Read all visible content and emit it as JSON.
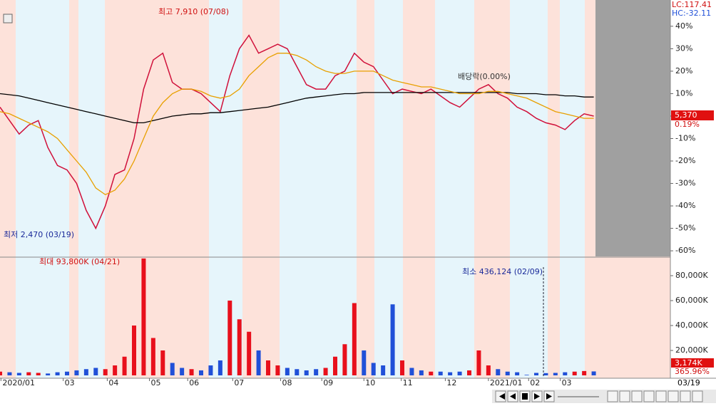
{
  "chart_data": [
    {
      "type": "line",
      "annotations": {
        "high": "최고 7,910 (07/08)",
        "low": "최저 2,470 (03/19)",
        "dividend": "배당락(0.00%)"
      },
      "readouts": {
        "lc": "LC:117.41",
        "hc": "HC:-32.11",
        "price": "5,370",
        "change": "0.19%"
      },
      "x": [
        0,
        1,
        2,
        3,
        4,
        5,
        6,
        7,
        8,
        9,
        10,
        11,
        12,
        13,
        14,
        15,
        16,
        17,
        18,
        19,
        20,
        21,
        22,
        23,
        24,
        25,
        26,
        27,
        28,
        29,
        30,
        31,
        32,
        33,
        34,
        35,
        36,
        37,
        38,
        39,
        40,
        41,
        42,
        43,
        44,
        45,
        46,
        47,
        48,
        49,
        50,
        51,
        52,
        53,
        54,
        55,
        56,
        57,
        58,
        59,
        60,
        61,
        62
      ],
      "series": [
        {
          "color": "#d0103a",
          "values": [
            4,
            -2,
            -8,
            -4,
            -2,
            -14,
            -22,
            -24,
            -30,
            -42,
            -50,
            -40,
            -26,
            -24,
            -10,
            12,
            25,
            28,
            15,
            12,
            12,
            10,
            6,
            2,
            18,
            30,
            36,
            28,
            30,
            32,
            30,
            22,
            14,
            12,
            12,
            18,
            20,
            28,
            24,
            22,
            16,
            10,
            12,
            11,
            10,
            12,
            9,
            6,
            4,
            8,
            12,
            14,
            10,
            8,
            4,
            2,
            -1,
            -3,
            -4,
            -6,
            -2,
            1,
            0
          ]
        },
        {
          "color": "#000000",
          "values": [
            10,
            9.5,
            9,
            8,
            7,
            6,
            5,
            4,
            3,
            2,
            1,
            0,
            -1,
            -2,
            -3,
            -3,
            -2,
            -1,
            0,
            0.5,
            1,
            1,
            1.5,
            1.5,
            2,
            2.5,
            3,
            3.5,
            4,
            5,
            6,
            7,
            8,
            8.5,
            9,
            9.5,
            10,
            10,
            10.5,
            10.5,
            10.5,
            10.5,
            10.5,
            10.5,
            10.5,
            10.5,
            10.5,
            10.5,
            10.5,
            10.5,
            10.5,
            10.5,
            10.5,
            10.5,
            10,
            10,
            10,
            9.5,
            9.5,
            9,
            9,
            8.5,
            8.5
          ]
        },
        {
          "color": "#e8a000",
          "values": [
            2,
            1,
            -1,
            -3,
            -5,
            -7,
            -10,
            -15,
            -20,
            -25,
            -32,
            -35,
            -33,
            -28,
            -20,
            -10,
            0,
            6,
            10,
            12,
            12,
            11,
            9,
            8,
            9,
            12,
            18,
            22,
            26,
            28,
            28,
            27,
            25,
            22,
            20,
            19,
            19,
            20,
            20,
            20,
            18,
            16,
            15,
            14,
            13,
            13,
            12,
            11,
            10,
            10,
            10,
            11,
            11,
            10,
            9,
            8,
            6,
            4,
            2,
            1,
            0,
            -1,
            -1
          ]
        }
      ],
      "xlim": [
        0,
        70
      ],
      "ylim": [
        -62.5,
        51.7
      ],
      "yticks": [
        {
          "value": 40,
          "label": "40%"
        },
        {
          "value": 30,
          "label": "30%"
        },
        {
          "value": 20,
          "label": "20%"
        },
        {
          "value": 10,
          "label": "10%"
        },
        {
          "value": 0,
          "label": "0%"
        },
        {
          "value": -10,
          "label": "-10%"
        },
        {
          "value": -20,
          "label": "-20%"
        },
        {
          "value": -30,
          "label": "-30%"
        },
        {
          "value": -40,
          "label": "-40%"
        },
        {
          "value": -50,
          "label": "-50%"
        },
        {
          "value": -60,
          "label": "-60%"
        }
      ]
    },
    {
      "type": "bar",
      "annotations": {
        "max": "최대 93,800K (04/21)",
        "min": "최소 436,124 (02/09)"
      },
      "readouts": {
        "volume": "3,174K",
        "ratio": "365.96%"
      },
      "cursor_date": "03/19",
      "up_color": "#e8101c",
      "down_color": "#2050d8",
      "x": [
        0,
        1,
        2,
        3,
        4,
        5,
        6,
        7,
        8,
        9,
        10,
        11,
        12,
        13,
        14,
        15,
        16,
        17,
        18,
        19,
        20,
        21,
        22,
        23,
        24,
        25,
        26,
        27,
        28,
        29,
        30,
        31,
        32,
        33,
        34,
        35,
        36,
        37,
        38,
        39,
        40,
        41,
        42,
        43,
        44,
        45,
        46,
        47,
        48,
        49,
        50,
        51,
        52,
        53,
        54,
        55,
        56,
        57,
        58,
        59,
        60,
        61,
        62
      ],
      "values": [
        3000,
        2500,
        2000,
        2500,
        2000,
        1500,
        2500,
        3000,
        4000,
        5000,
        6000,
        5000,
        8000,
        15000,
        40000,
        93800,
        30000,
        20000,
        10000,
        6000,
        5000,
        4000,
        8000,
        12000,
        60000,
        45000,
        35000,
        20000,
        12000,
        8000,
        6000,
        5000,
        4000,
        5000,
        6000,
        15000,
        25000,
        58000,
        20000,
        10000,
        8000,
        57000,
        12000,
        6000,
        4000,
        3000,
        3000,
        2500,
        3000,
        4000,
        20000,
        8000,
        5000,
        3000,
        2500,
        436,
        2000,
        1800,
        2000,
        2500,
        3000,
        3500,
        3174
      ],
      "xlim": [
        0,
        70
      ],
      "ylim": [
        0,
        94300
      ],
      "xticks": [
        {
          "value": 0.1,
          "label": "2020/01"
        },
        {
          "value": 6.6,
          "label": "03"
        },
        {
          "value": 11.2,
          "label": "04"
        },
        {
          "value": 15.6,
          "label": "05"
        },
        {
          "value": 19.6,
          "label": "06"
        },
        {
          "value": 24.3,
          "label": "07"
        },
        {
          "value": 29.3,
          "label": "08"
        },
        {
          "value": 33.6,
          "label": "09"
        },
        {
          "value": 38.0,
          "label": "10"
        },
        {
          "value": 41.9,
          "label": "11"
        },
        {
          "value": 46.5,
          "label": "12"
        },
        {
          "value": 51.0,
          "label": "2021/01"
        },
        {
          "value": 55.2,
          "label": "02"
        },
        {
          "value": 58.5,
          "label": "03"
        }
      ],
      "yticks": [
        {
          "value": 20000,
          "label": "20,000K"
        },
        {
          "value": 40000,
          "label": "40,000K"
        },
        {
          "value": 60000,
          "label": "60,000K"
        },
        {
          "value": 80000,
          "label": "80,000K"
        }
      ]
    }
  ]
}
